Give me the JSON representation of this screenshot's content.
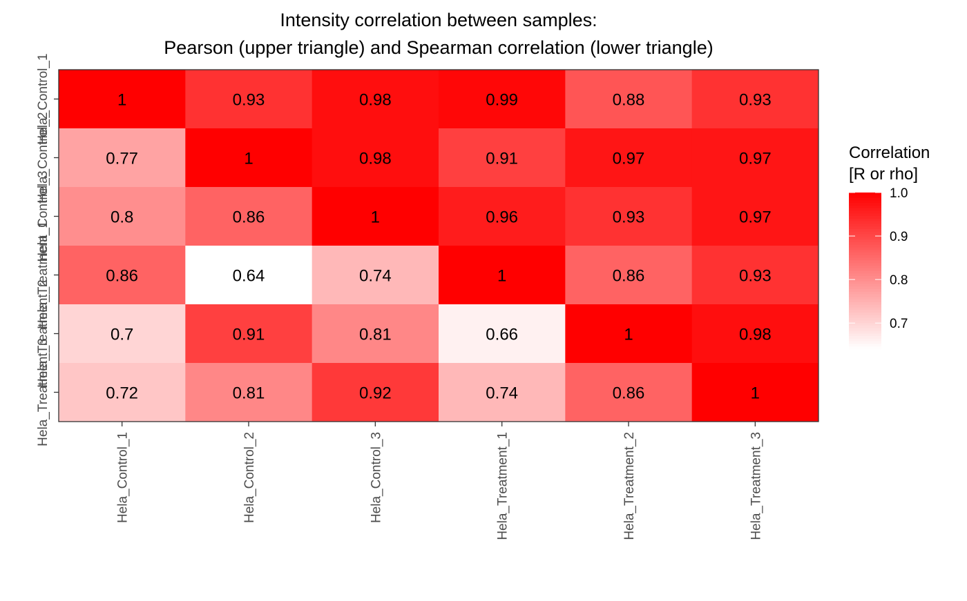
{
  "chart_data": {
    "type": "heatmap",
    "title": "Intensity correlation between samples:",
    "subtitle": "Pearson (upper triangle) and Spearman correlation (lower triangle)",
    "x_categories": [
      "Hela_Control_1",
      "Hela_Control_2",
      "Hela_Control_3",
      "Hela_Treatment_1",
      "Hela_Treatment_2",
      "Hela_Treatment_3"
    ],
    "y_categories": [
      "Hela_Control_1",
      "Hela_Control_2",
      "Hela_Control_3",
      "Hela_Treatment_1",
      "Hela_Treatment_2",
      "Hela_Treatment_3"
    ],
    "values": [
      [
        1,
        0.93,
        0.98,
        0.99,
        0.88,
        0.93
      ],
      [
        0.77,
        1,
        0.98,
        0.91,
        0.97,
        0.97
      ],
      [
        0.8,
        0.86,
        1,
        0.96,
        0.93,
        0.97
      ],
      [
        0.86,
        0.64,
        0.74,
        1,
        0.86,
        0.93
      ],
      [
        0.7,
        0.91,
        0.81,
        0.66,
        1,
        0.98
      ],
      [
        0.72,
        0.81,
        0.92,
        0.74,
        0.86,
        1
      ]
    ],
    "labels": [
      [
        "1",
        "0.93",
        "0.98",
        "0.99",
        "0.88",
        "0.93"
      ],
      [
        "0.77",
        "1",
        "0.98",
        "0.91",
        "0.97",
        "0.97"
      ],
      [
        "0.8",
        "0.86",
        "1",
        "0.96",
        "0.93",
        "0.97"
      ],
      [
        "0.86",
        "0.64",
        "0.74",
        "1",
        "0.86",
        "0.93"
      ],
      [
        "0.7",
        "0.91",
        "0.81",
        "0.66",
        "1",
        "0.98"
      ],
      [
        "0.72",
        "0.81",
        "0.92",
        "0.74",
        "0.86",
        "1"
      ]
    ],
    "legend": {
      "title_lines": [
        "Correlation",
        "[R or rho]"
      ],
      "ticks": [
        1.0,
        0.9,
        0.8,
        0.7
      ],
      "tick_labels": [
        "1.0",
        "0.9",
        "0.8",
        "0.7"
      ],
      "placement": "right"
    },
    "color_scale": {
      "low": "#ffffff",
      "high": "#ff0000",
      "domain": [
        0.64,
        1.0
      ]
    }
  }
}
